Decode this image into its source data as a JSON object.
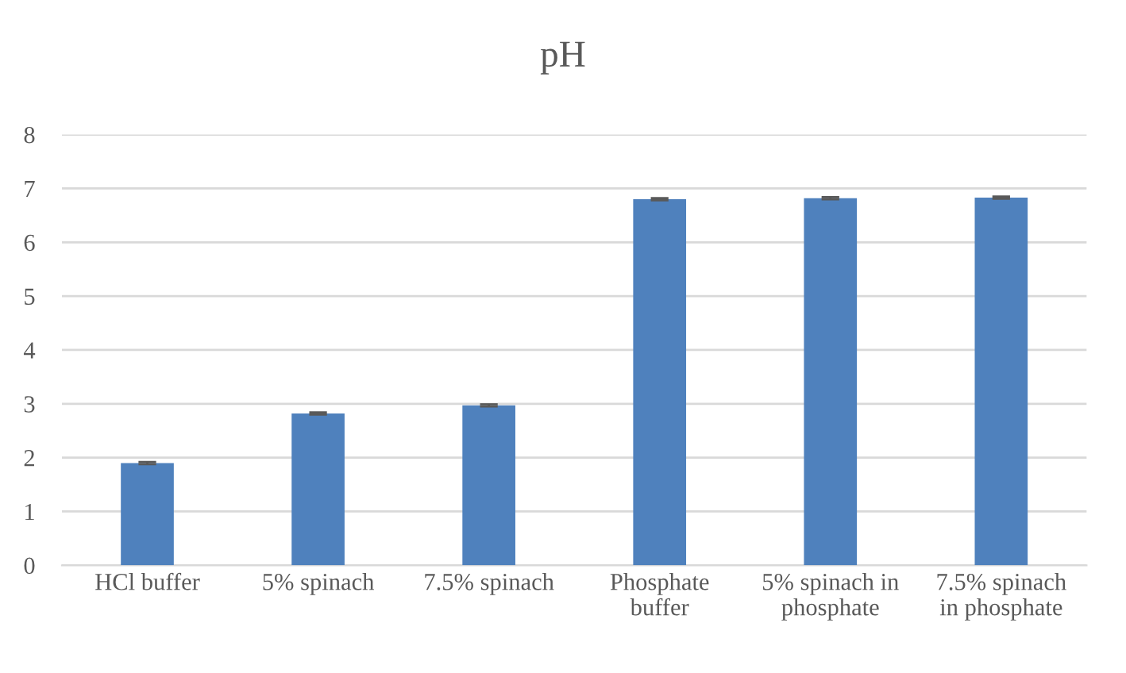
{
  "chart_data": {
    "type": "bar",
    "title": "pH",
    "categories": [
      "HCl buffer",
      "5% spinach",
      "7.5% spinach",
      "Phosphate\nbuffer",
      "5% spinach in\nphosphate",
      "7.5% spinach\nin phosphate"
    ],
    "values": [
      1.9,
      2.82,
      2.97,
      6.8,
      6.82,
      6.83
    ],
    "errors": [
      0.02,
      0.02,
      0.02,
      0.02,
      0.02,
      0.02
    ],
    "color": "#4f81bd",
    "ylim": [
      0,
      8
    ],
    "yticks": [
      0,
      1,
      2,
      3,
      4,
      5,
      6,
      7,
      8
    ],
    "grid": "y",
    "legend": false
  }
}
